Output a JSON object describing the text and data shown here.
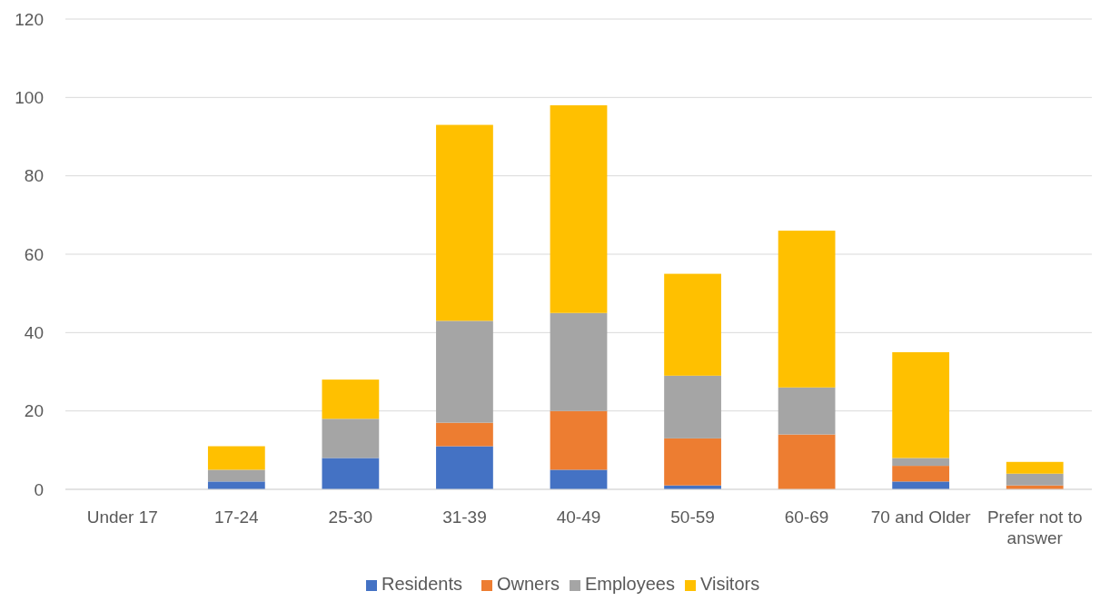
{
  "chart_data": {
    "type": "bar",
    "stacked": true,
    "categories": [
      "Under 17",
      "17-24",
      "25-30",
      "31-39",
      "40-49",
      "50-59",
      "60-69",
      "70 and Older",
      "Prefer not to answer"
    ],
    "series": [
      {
        "name": "Residents",
        "color": "#4472c4",
        "values": [
          0,
          2,
          8,
          11,
          5,
          1,
          0,
          2,
          0
        ]
      },
      {
        "name": "Owners",
        "color": "#ed7d31",
        "values": [
          0,
          0,
          0,
          6,
          15,
          12,
          14,
          4,
          1
        ]
      },
      {
        "name": "Employees",
        "color": "#a5a5a5",
        "values": [
          0,
          3,
          10,
          26,
          25,
          16,
          12,
          2,
          3
        ]
      },
      {
        "name": "Visitors",
        "color": "#ffc000",
        "values": [
          0,
          6,
          10,
          50,
          53,
          26,
          40,
          27,
          3
        ]
      }
    ],
    "ylim": [
      0,
      120
    ],
    "yticks": [
      0,
      20,
      40,
      60,
      80,
      100,
      120
    ],
    "grid": "y",
    "legend": "bottom"
  }
}
